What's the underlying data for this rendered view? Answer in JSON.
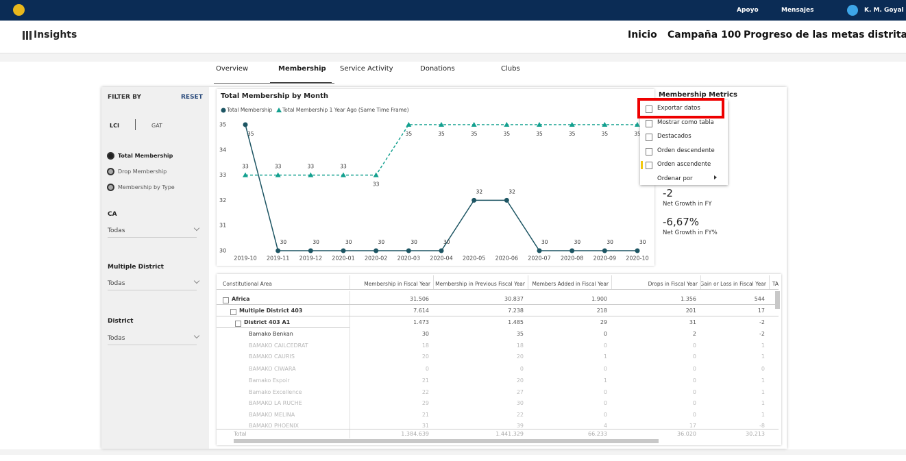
{
  "top_bar": {
    "links": [
      "Apoyo",
      "Mensajes"
    ],
    "user": "K. M. Goyal"
  },
  "header": {
    "app": "Insights",
    "nav": [
      "Inicio",
      "Campaña 100",
      "Progreso de las metas distritales"
    ]
  },
  "tabs": {
    "items": [
      "Overview",
      "Membership",
      "Service Activity",
      "Donations",
      "Clubs"
    ],
    "active": 1
  },
  "filters": {
    "title": "FILTER BY",
    "reset": "RESET",
    "toggle": [
      "LCI",
      "GAT"
    ],
    "options": [
      "Total Membership",
      "Drop Membership",
      "Membership by Type"
    ],
    "selected": 0,
    "dropdowns": [
      {
        "label": "CA",
        "value": "Todas"
      },
      {
        "label": "Multiple District",
        "value": "Todas"
      },
      {
        "label": "District",
        "value": "Todas"
      }
    ]
  },
  "chart_data": {
    "type": "line",
    "title": "Total Membership by Month",
    "categories": [
      "2019-10",
      "2019-11",
      "2019-12",
      "2020-01",
      "2020-02",
      "2020-03",
      "2020-04",
      "2020-05",
      "2020-06",
      "2020-07",
      "2020-08",
      "2020-09",
      "2020-10"
    ],
    "series": [
      {
        "name": "Total Membership",
        "color": "#1d5563",
        "style": "solid",
        "values": [
          35,
          30,
          30,
          30,
          30,
          30,
          30,
          32,
          32,
          30,
          30,
          30,
          30
        ]
      },
      {
        "name": "Total Membership 1 Year Ago (Same Time Frame)",
        "color": "#13a08f",
        "style": "dashed",
        "values": [
          33,
          33,
          33,
          33,
          33,
          35,
          35,
          35,
          35,
          35,
          35,
          35,
          35
        ]
      }
    ],
    "ylim": [
      30,
      35
    ],
    "yticks": [
      30,
      31,
      32,
      33,
      34,
      35
    ],
    "data_labels": true
  },
  "metrics": {
    "title": "Membership Metrics",
    "items": [
      {
        "value": "-2",
        "label": "Net Growth in FY"
      },
      {
        "value": "-6,67%",
        "label": "Net Growth in FY%"
      }
    ]
  },
  "context_menu": {
    "items": [
      "Exportar datos",
      "Mostrar como tabla",
      "Destacados",
      "Orden descendente",
      "Orden ascendente",
      "Ordenar por"
    ],
    "highlighted": 0
  },
  "table": {
    "columns": [
      "Constitutional Area",
      "Membership in Fiscal Year",
      "Membership in Previous Fiscal Year",
      "Members Added in Fiscal Year",
      "Drops in Fiscal Year",
      "Gain or Loss in Fiscal Year",
      "TA"
    ],
    "rows": [
      [
        "Africa",
        "31.506",
        "30.837",
        "1.900",
        "1.356",
        "544"
      ],
      [
        "Multiple District 403",
        "7.614",
        "7.238",
        "218",
        "201",
        "17"
      ],
      [
        "District 403 A1",
        "1.473",
        "1.485",
        "29",
        "31",
        "-2"
      ],
      [
        "Bamako Benkan",
        "30",
        "35",
        "0",
        "2",
        "-2"
      ],
      [
        "BAMAKO CAILCEDRAT",
        "18",
        "18",
        "0",
        "0",
        "1"
      ],
      [
        "BAMAKO CAURIS",
        "20",
        "20",
        "1",
        "0",
        "1"
      ],
      [
        "BAMAKO CIWARA",
        "0",
        "0",
        "0",
        "0",
        "0"
      ],
      [
        "Bamako Espoir",
        "21",
        "20",
        "1",
        "0",
        "1"
      ],
      [
        "Bamako Excellence",
        "22",
        "27",
        "0",
        "0",
        "1"
      ],
      [
        "BAMAKO LA RUCHE",
        "29",
        "30",
        "0",
        "0",
        "1"
      ],
      [
        "BAMAKO MELINA",
        "21",
        "22",
        "0",
        "0",
        "1"
      ],
      [
        "BAMAKO PHOENIX",
        "31",
        "39",
        "4",
        "17",
        "-8"
      ]
    ],
    "total": [
      "Total",
      "1.384.639",
      "1.441.329",
      "66.233",
      "36.020",
      "30.213"
    ]
  }
}
